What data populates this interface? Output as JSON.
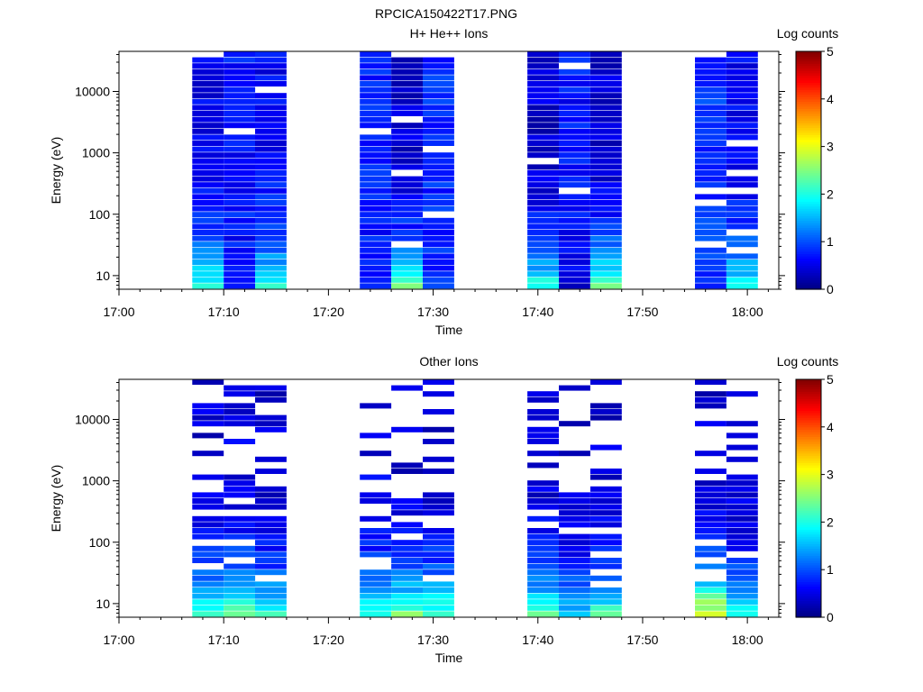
{
  "figure": {
    "title": "RPCICA150422T17.PNG"
  },
  "colorbar": {
    "label": "Log counts",
    "ticks": [
      "0",
      "1",
      "2",
      "3",
      "4",
      "5"
    ],
    "range": [
      0,
      5
    ],
    "colormap": "jet"
  },
  "chart_data": [
    {
      "type": "heatmap",
      "title": "H+ He++ Ions",
      "xlabel": "Time",
      "ylabel": "Energy (eV)",
      "x_ticks": [
        "17:00",
        "17:10",
        "17:20",
        "17:30",
        "17:40",
        "17:50",
        "18:00"
      ],
      "y_ticks": [
        "10",
        "100",
        "1000",
        "10000"
      ],
      "y_scale": "log",
      "xlim": [
        "17:00",
        "18:03"
      ],
      "ylim": [
        6,
        45000
      ],
      "color_label": "Log counts",
      "color_range": [
        0,
        5
      ],
      "columns": [
        {
          "start": "17:07",
          "end": "17:10",
          "level_low": 2.0,
          "level_high": 0.55
        },
        {
          "start": "17:10",
          "end": "17:13",
          "level_low": 0.7,
          "level_high": 0.7
        },
        {
          "start": "17:13",
          "end": "17:16",
          "level_low": 2.0,
          "level_high": 0.6
        },
        {
          "start": "17:23",
          "end": "17:26",
          "level_low": 0.6,
          "level_high": 0.8
        },
        {
          "start": "17:26",
          "end": "17:29",
          "level_low": 2.3,
          "level_high": 0.4
        },
        {
          "start": "17:29",
          "end": "17:32",
          "level_low": 0.9,
          "level_high": 0.8
        },
        {
          "start": "17:39",
          "end": "17:42",
          "level_low": 2.1,
          "level_high": 0.4
        },
        {
          "start": "17:42",
          "end": "17:45",
          "level_low": 0.5,
          "level_high": 0.7
        },
        {
          "start": "17:45",
          "end": "17:48",
          "level_low": 2.3,
          "level_high": 0.4
        },
        {
          "start": "17:55",
          "end": "17:58",
          "level_low": 0.8,
          "level_high": 0.9
        },
        {
          "start": "17:58",
          "end": "18:01",
          "level_low": 1.9,
          "level_high": 0.6
        }
      ]
    },
    {
      "type": "heatmap",
      "title": "Other Ions",
      "xlabel": "Time",
      "ylabel": "Energy (eV)",
      "x_ticks": [
        "17:00",
        "17:10",
        "17:20",
        "17:30",
        "17:40",
        "17:50",
        "18:00"
      ],
      "y_ticks": [
        "10",
        "100",
        "1000",
        "10000"
      ],
      "y_scale": "log",
      "xlim": [
        "17:00",
        "18:03"
      ],
      "ylim": [
        6,
        45000
      ],
      "color_label": "Log counts",
      "color_range": [
        0,
        5
      ],
      "columns": [
        {
          "start": "17:07",
          "end": "17:10",
          "level_low": 2.2,
          "level_high": 0.4
        },
        {
          "start": "17:10",
          "end": "17:13",
          "level_low": 2.3,
          "level_high": 0.5
        },
        {
          "start": "17:13",
          "end": "17:16",
          "level_low": 2.1,
          "level_high": 0.4
        },
        {
          "start": "17:23",
          "end": "17:26",
          "level_low": 2.0,
          "level_high": 0.5
        },
        {
          "start": "17:26",
          "end": "17:29",
          "level_low": 2.4,
          "level_high": 0.4
        },
        {
          "start": "17:29",
          "end": "17:32",
          "level_low": 2.3,
          "level_high": 0.4
        },
        {
          "start": "17:39",
          "end": "17:42",
          "level_low": 2.3,
          "level_high": 0.4
        },
        {
          "start": "17:42",
          "end": "17:45",
          "level_low": 1.7,
          "level_high": 0.4
        },
        {
          "start": "17:45",
          "end": "17:48",
          "level_low": 2.2,
          "level_high": 0.4
        },
        {
          "start": "17:55",
          "end": "17:58",
          "level_low": 3.1,
          "level_high": 0.4
        },
        {
          "start": "17:58",
          "end": "18:01",
          "level_low": 2.1,
          "level_high": 0.4
        }
      ]
    }
  ]
}
